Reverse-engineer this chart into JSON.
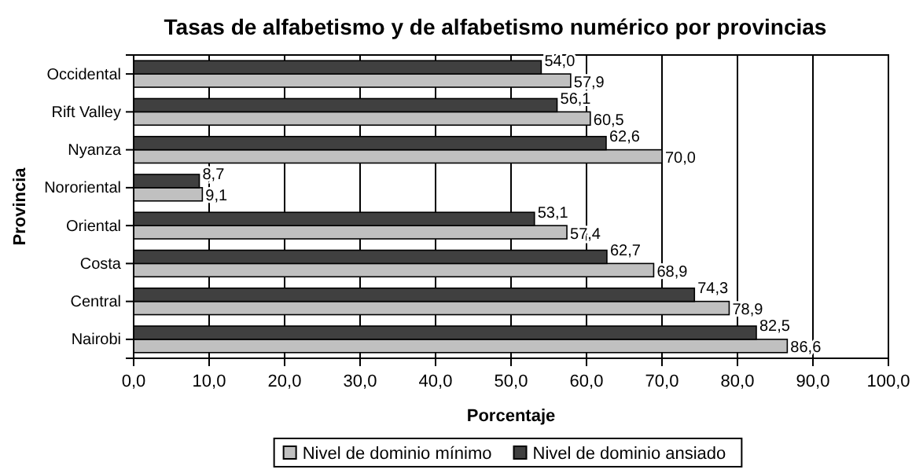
{
  "chart_data": {
    "type": "bar",
    "orientation": "horizontal",
    "title": "Tasas de alfabetismo y de alfabetismo numérico por provincias",
    "xlabel": "Porcentaje",
    "ylabel": "Provincia",
    "categories": [
      "Occidental",
      "Rift Valley",
      "Nyanza",
      "Nororiental",
      "Oriental",
      "Costa",
      "Central",
      "Nairobi"
    ],
    "series": [
      {
        "name": "Nivel de dominio mínimo",
        "color": "#c0c0c0",
        "values": [
          57.9,
          60.5,
          70.0,
          9.1,
          57.4,
          68.9,
          78.9,
          86.6
        ],
        "value_labels": [
          "57,9",
          "60,5",
          "70,0",
          "9,1",
          "57,4",
          "68,9",
          "78,9",
          "86,6"
        ]
      },
      {
        "name": "Nivel de dominio ansiado",
        "color": "#404040",
        "values": [
          54.0,
          56.1,
          62.6,
          8.7,
          53.1,
          62.7,
          74.3,
          82.5
        ],
        "value_labels": [
          "54,0",
          "56,1",
          "62,6",
          "8,7",
          "53,1",
          "62,7",
          "74,3",
          "82,5"
        ]
      }
    ],
    "xlim": [
      0,
      100
    ],
    "xticks": [
      {
        "value": 0,
        "label": "0,0"
      },
      {
        "value": 10,
        "label": "10,0"
      },
      {
        "value": 20,
        "label": "20,0"
      },
      {
        "value": 30,
        "label": "30,0"
      },
      {
        "value": 40,
        "label": "40,0"
      },
      {
        "value": 50,
        "label": "50,0"
      },
      {
        "value": 60,
        "label": "60,0"
      },
      {
        "value": 70,
        "label": "70,0"
      },
      {
        "value": 80,
        "label": "80,0"
      },
      {
        "value": 90,
        "label": "90,0"
      },
      {
        "value": 100,
        "label": "100,0"
      }
    ],
    "grid": "x",
    "legend": "bottom"
  }
}
